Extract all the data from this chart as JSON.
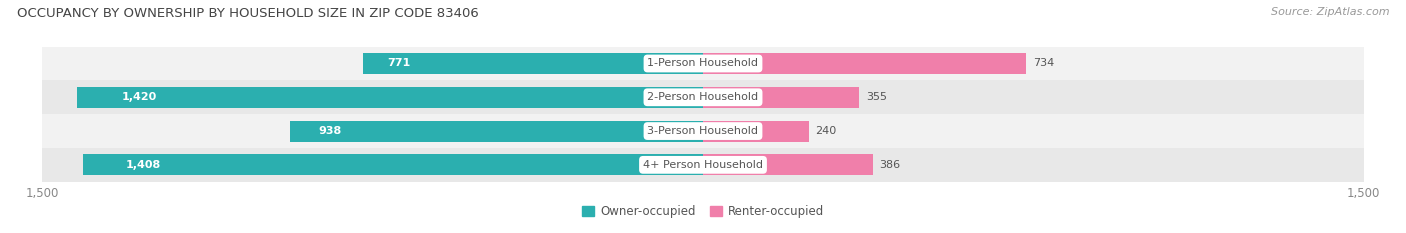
{
  "title": "OCCUPANCY BY OWNERSHIP BY HOUSEHOLD SIZE IN ZIP CODE 83406",
  "source": "Source: ZipAtlas.com",
  "categories": [
    "1-Person Household",
    "2-Person Household",
    "3-Person Household",
    "4+ Person Household"
  ],
  "owner_values": [
    771,
    1420,
    938,
    1408
  ],
  "renter_values": [
    734,
    355,
    240,
    386
  ],
  "owner_color": "#2BAFAF",
  "renter_color": "#F07FAA",
  "row_colors": [
    "#F2F2F2",
    "#E8E8E8"
  ],
  "xlim": 1500,
  "label_fontsize": 8.0,
  "title_fontsize": 9.5,
  "source_fontsize": 8.0,
  "tick_fontsize": 8.5,
  "legend_fontsize": 8.5,
  "bar_height": 0.62,
  "background_color": "#FFFFFF",
  "dark_label_color": "#555555",
  "white_label_color": "#FFFFFF"
}
